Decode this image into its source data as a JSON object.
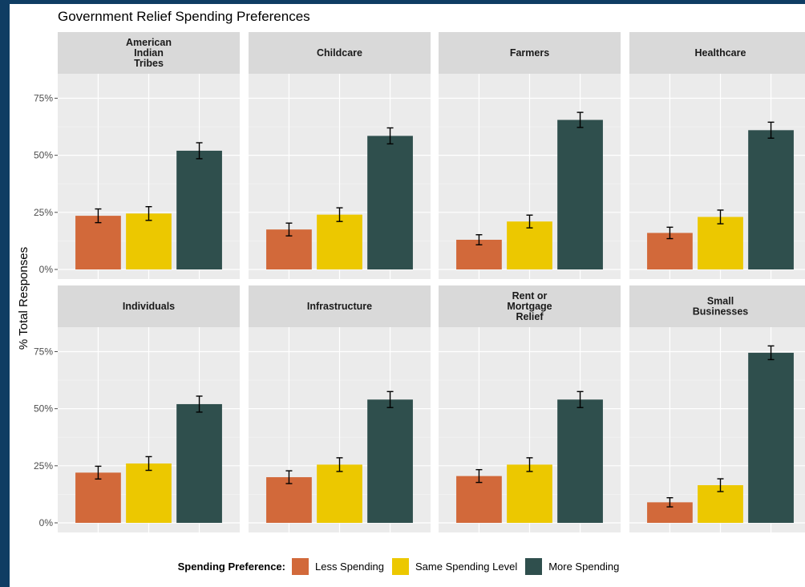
{
  "chart_data": {
    "type": "bar",
    "title": "Government Relief Spending Preferences",
    "ylabel": "% Total Responses",
    "xlabel": "",
    "ylim": [
      0,
      0.85
    ],
    "y_ticks": [
      "0%",
      "25%",
      "50%",
      "75%"
    ],
    "y_tick_values": [
      0,
      0.25,
      0.5,
      0.75
    ],
    "grid": true,
    "legend": {
      "title": "Spending Preference:",
      "position": "bottom",
      "entries": [
        "Less Spending",
        "Same Spending Level",
        "More Spending"
      ]
    },
    "series_colors": [
      "#d2693a",
      "#ecc800",
      "#2f4f4d"
    ],
    "panels": [
      {
        "name": "American\nIndian\nTribes",
        "values": [
          0.235,
          0.245,
          0.52
        ],
        "error": [
          0.03,
          0.03,
          0.035
        ]
      },
      {
        "name": "Childcare",
        "values": [
          0.175,
          0.24,
          0.585
        ],
        "error": [
          0.028,
          0.03,
          0.035
        ]
      },
      {
        "name": "Farmers",
        "values": [
          0.13,
          0.21,
          0.655
        ],
        "error": [
          0.022,
          0.028,
          0.033
        ]
      },
      {
        "name": "Healthcare",
        "values": [
          0.16,
          0.23,
          0.61
        ],
        "error": [
          0.025,
          0.03,
          0.035
        ]
      },
      {
        "name": "Individuals",
        "values": [
          0.22,
          0.26,
          0.52
        ],
        "error": [
          0.028,
          0.03,
          0.035
        ]
      },
      {
        "name": "Infrastructure",
        "values": [
          0.2,
          0.255,
          0.54
        ],
        "error": [
          0.028,
          0.03,
          0.035
        ]
      },
      {
        "name": "Rent or\nMortgage\nRelief",
        "values": [
          0.205,
          0.255,
          0.54
        ],
        "error": [
          0.028,
          0.03,
          0.035
        ]
      },
      {
        "name": "Small\nBusinesses",
        "values": [
          0.09,
          0.165,
          0.745
        ],
        "error": [
          0.02,
          0.028,
          0.03
        ]
      }
    ]
  }
}
